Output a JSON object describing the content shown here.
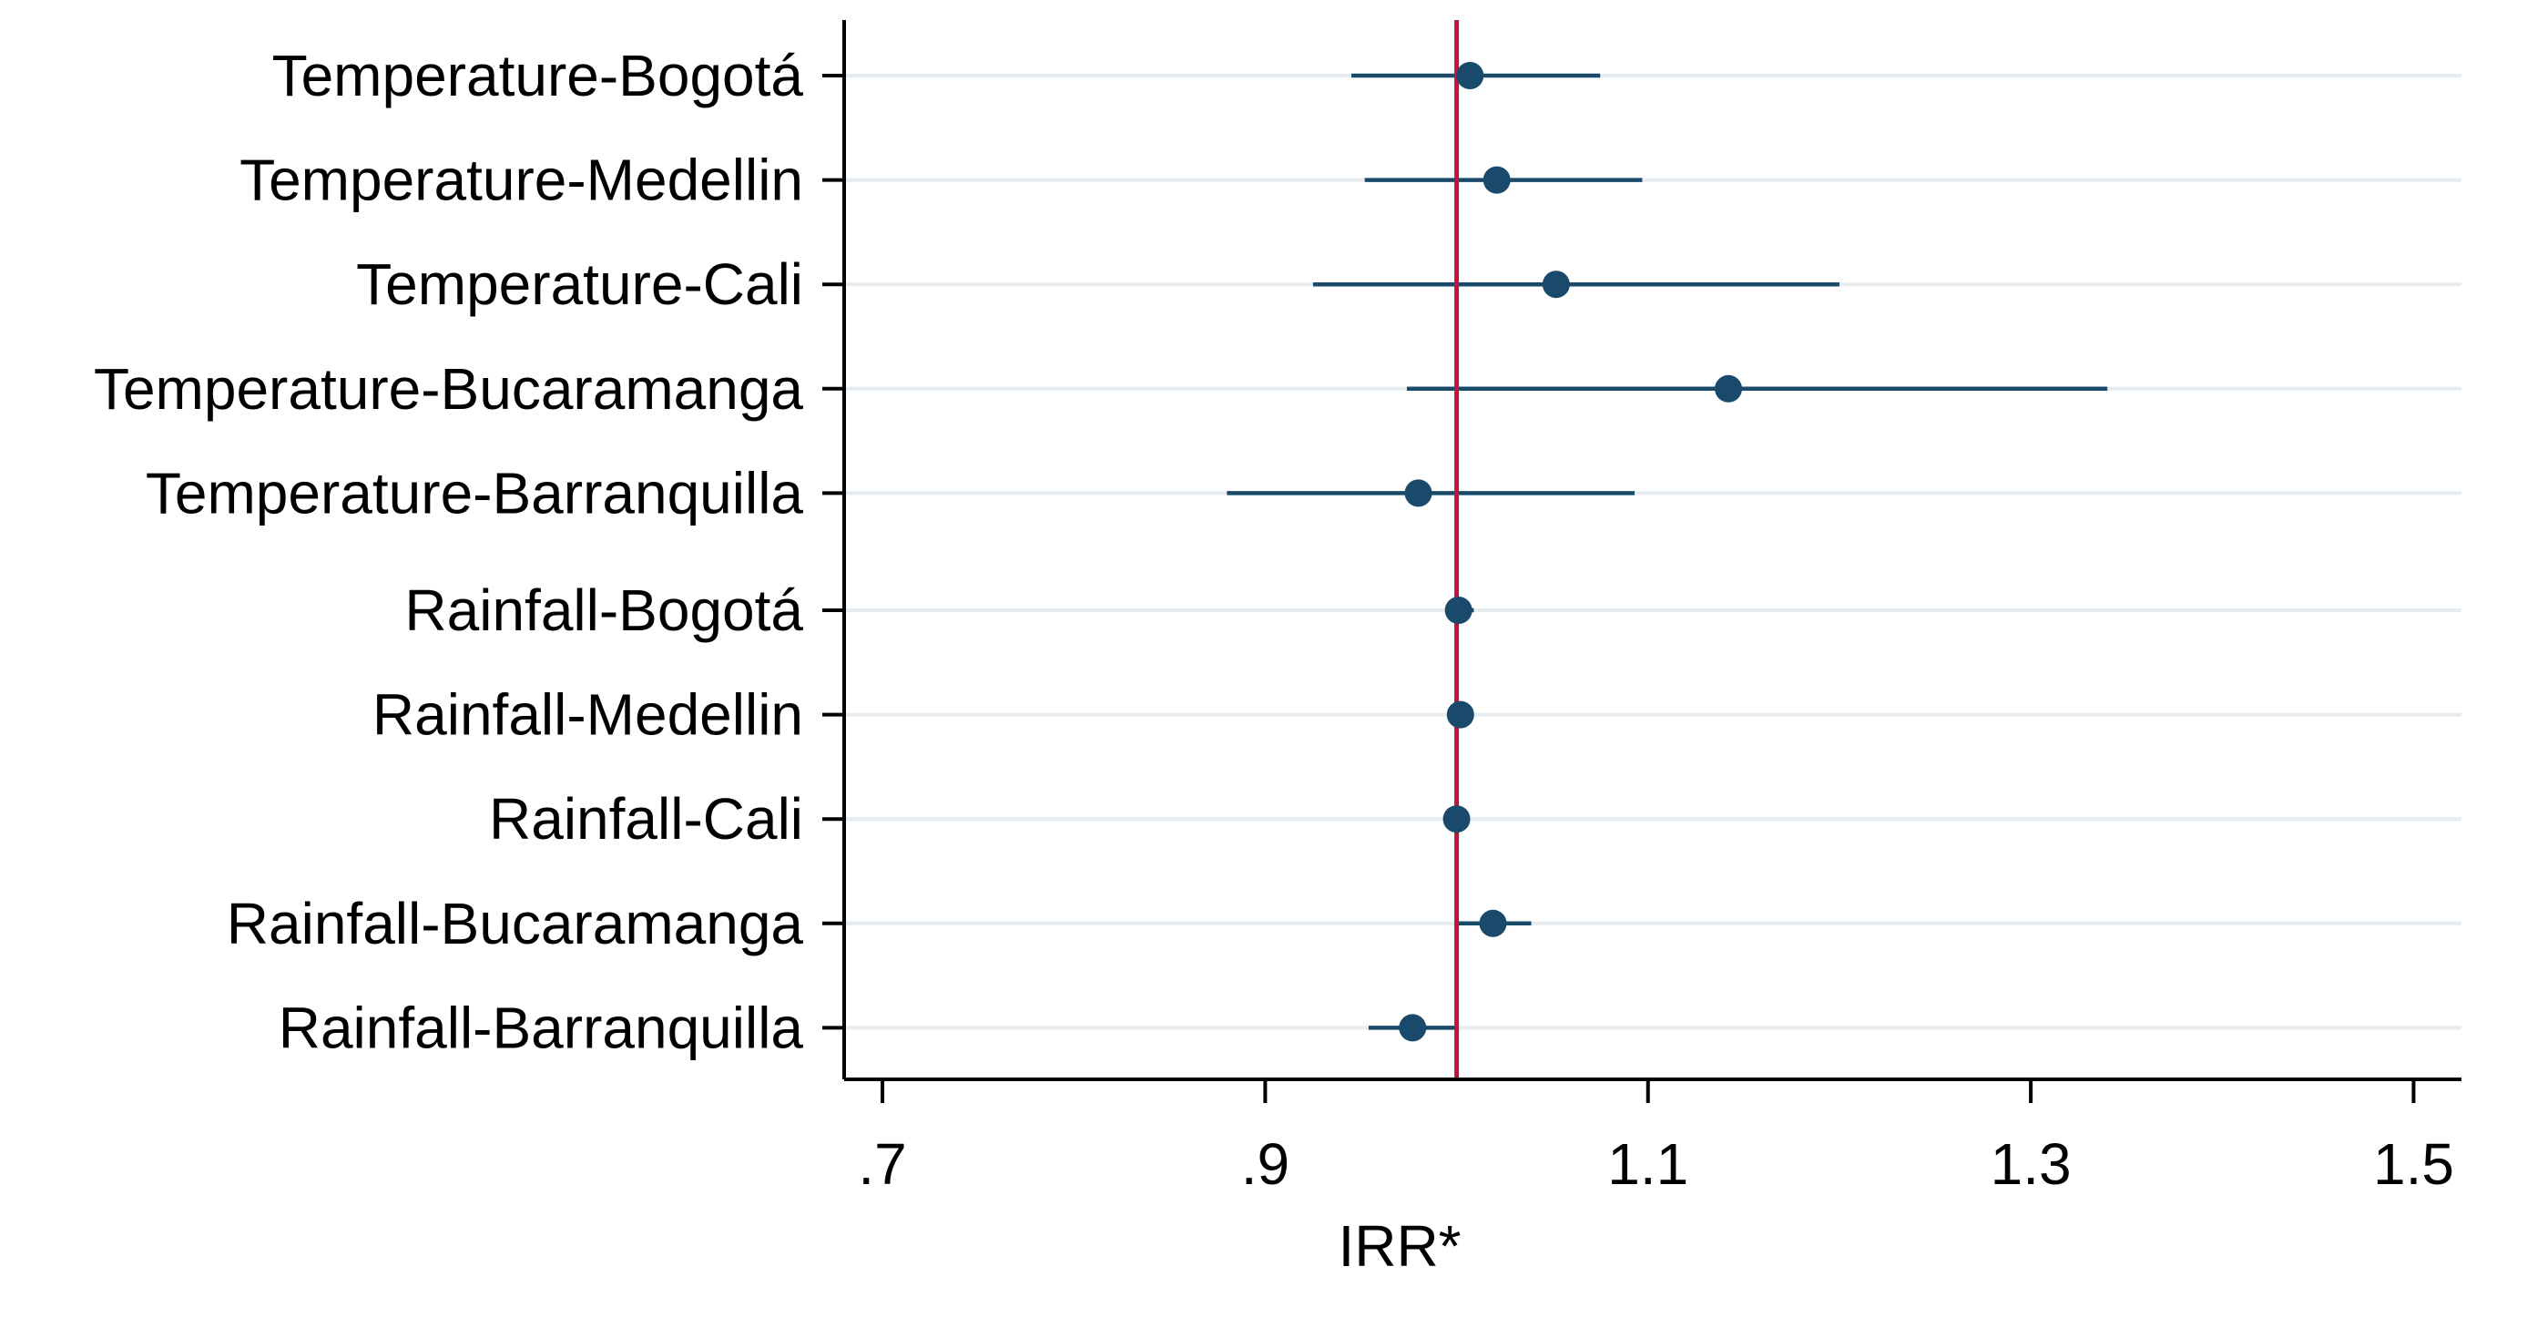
{
  "chart_data": {
    "type": "forest",
    "title": "",
    "xlabel": "IRR*",
    "ylabel": "",
    "xlim": [
      0.68,
      1.525
    ],
    "xticks": [
      0.7,
      0.9,
      1.1,
      1.3,
      1.5
    ],
    "xtick_labels": [
      ".7",
      ".9",
      "1.1",
      "1.3",
      "1.5"
    ],
    "reference_line": 1.0,
    "grid": true,
    "colors": {
      "point": "#1a4a6b",
      "ci": "#1a4a6b",
      "reference": "#c0143c",
      "grid": "#e6ecef",
      "axis": "#000000"
    },
    "categories": [
      "Temperature-Bogotá",
      "Temperature-Medellin",
      "Temperature-Cali",
      "Temperature-Bucaramanga",
      "Temperature-Barranquilla",
      "Rainfall-Bogotá",
      "Rainfall-Medellin",
      "Rainfall-Cali",
      "Rainfall-Bucaramanga",
      "Rainfall-Barranquilla"
    ],
    "estimates": [
      1.007,
      1.021,
      1.052,
      1.142,
      0.98,
      1.001,
      1.002,
      1.0,
      1.019,
      0.977
    ],
    "ci_lower": [
      0.945,
      0.952,
      0.925,
      0.974,
      0.88,
      0.994,
      0.996,
      0.995,
      1.001,
      0.954
    ],
    "ci_upper": [
      1.075,
      1.097,
      1.2,
      1.34,
      1.093,
      1.009,
      1.008,
      1.005,
      1.039,
      1.001
    ]
  }
}
